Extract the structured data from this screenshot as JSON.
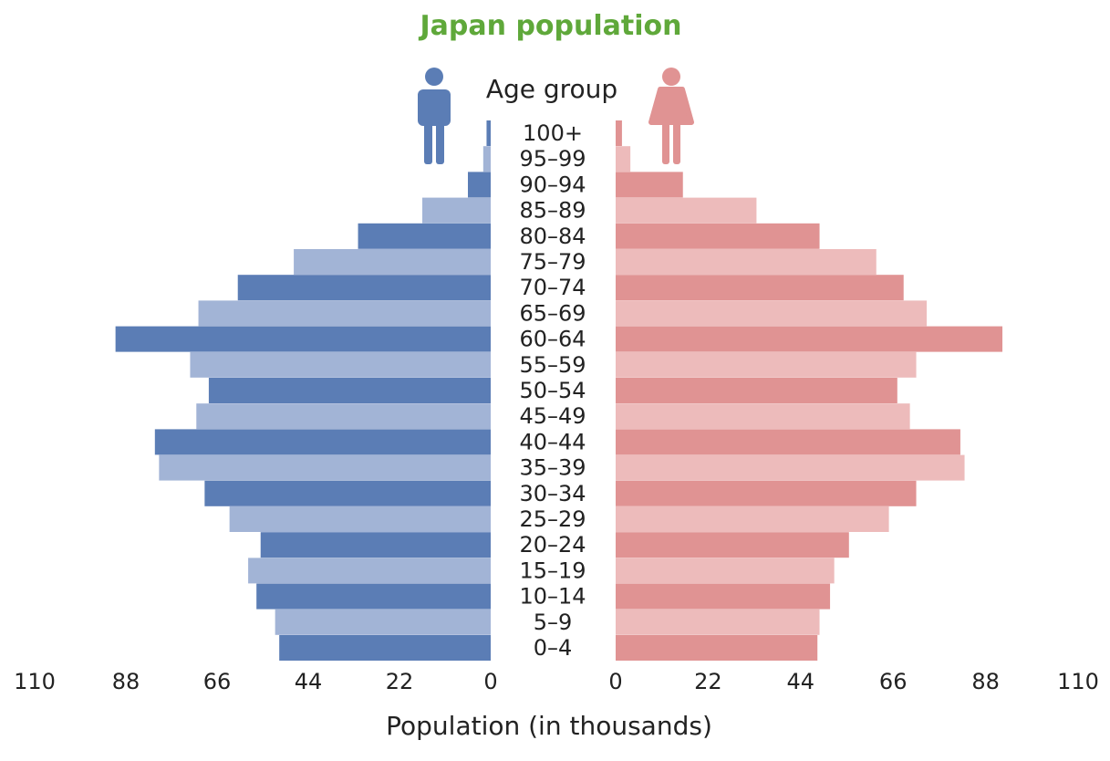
{
  "chart_data": {
    "type": "bar",
    "orientation": "horizontal",
    "layout": "population-pyramid",
    "title": "Japan population",
    "category_header": "Age group",
    "xlabel": "Population (in thousands)",
    "xlim": [
      0,
      110
    ],
    "x_ticks": [
      "110",
      "88",
      "66",
      "44",
      "22",
      "0"
    ],
    "x_ticks_right": [
      "0",
      "22",
      "44",
      "66",
      "88",
      "110"
    ],
    "categories": [
      "100+",
      "95–99",
      "90–94",
      "85–89",
      "80–84",
      "75–79",
      "70–74",
      "65–69",
      "60–64",
      "55–59",
      "50–54",
      "45–49",
      "40–44",
      "35–39",
      "30–34",
      "25–29",
      "20–24",
      "15–19",
      "10–14",
      "5–9",
      "0–4"
    ],
    "series": [
      {
        "side": "left",
        "icon": "male-icon",
        "color_dark": "#5b7db5",
        "color_light": "#a2b4d6",
        "values": [
          1.0,
          1.8,
          5.5,
          16.5,
          32.0,
          47.5,
          61.0,
          70.5,
          90.5,
          72.5,
          68.0,
          71.0,
          81.0,
          80.0,
          69.0,
          63.0,
          55.5,
          58.5,
          56.5,
          52.0,
          51.0
        ]
      },
      {
        "side": "right",
        "icon": "female-icon",
        "color_dark": "#e09393",
        "color_light": "#edbbbb",
        "values": [
          1.5,
          3.5,
          16.0,
          33.5,
          48.5,
          62.0,
          68.5,
          74.0,
          92.0,
          71.5,
          67.0,
          70.0,
          82.0,
          83.0,
          71.5,
          65.0,
          55.5,
          52.0,
          51.0,
          48.5,
          48.0
        ]
      }
    ],
    "colors": {
      "title": "#5fa83a",
      "male": "#5b7db5",
      "female": "#e09393"
    }
  }
}
